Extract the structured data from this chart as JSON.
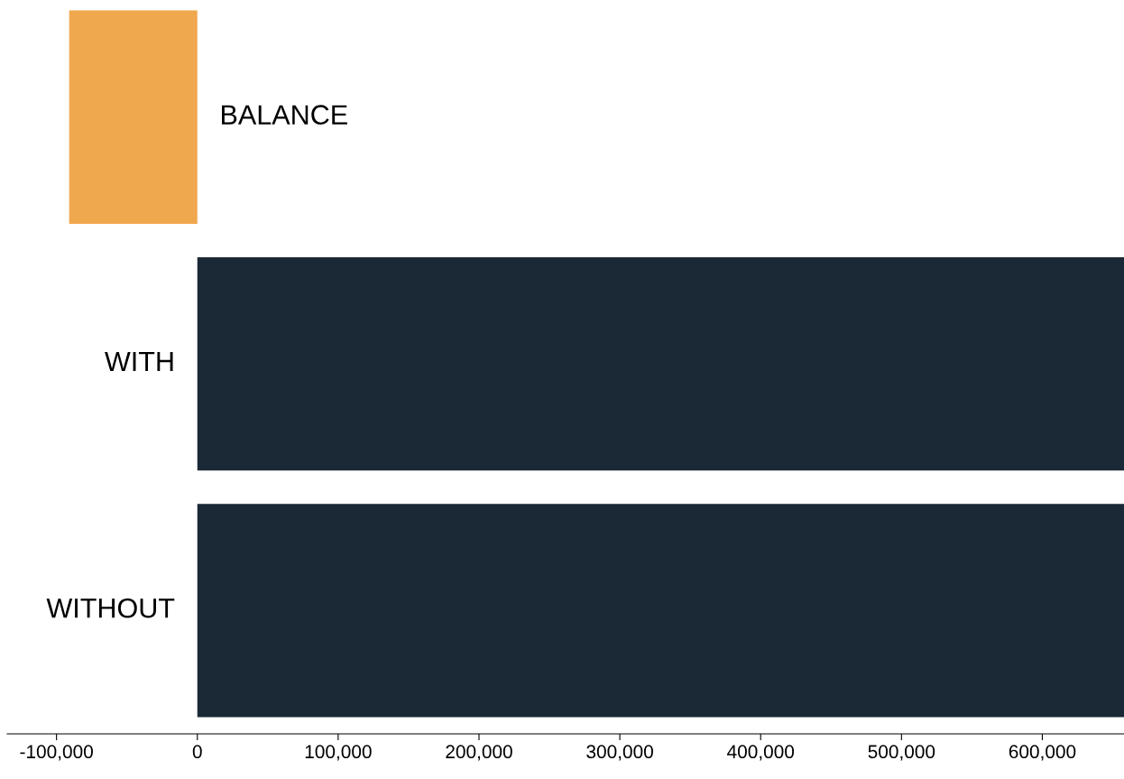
{
  "chart_data": {
    "type": "bar",
    "orientation": "horizontal",
    "categories": [
      "BALANCE",
      "WITH",
      "WITHOUT"
    ],
    "values": [
      -91000,
      658000,
      658000
    ],
    "colors": [
      "#f0a84e",
      "#1b2836",
      "#1b2836"
    ],
    "xlim": [
      -135000,
      658000
    ],
    "xticks": [
      {
        "value": -100000,
        "label": "-100,000"
      },
      0,
      {
        "value": 100000,
        "label": "100,000"
      },
      {
        "value": 200000,
        "label": "200,000"
      },
      {
        "value": 300000,
        "label": "300,000"
      },
      {
        "value": 400000,
        "label": "400,000"
      },
      {
        "value": 500000,
        "label": "500,000"
      },
      {
        "value": 600000,
        "label": "600,000"
      }
    ],
    "grid": false
  }
}
